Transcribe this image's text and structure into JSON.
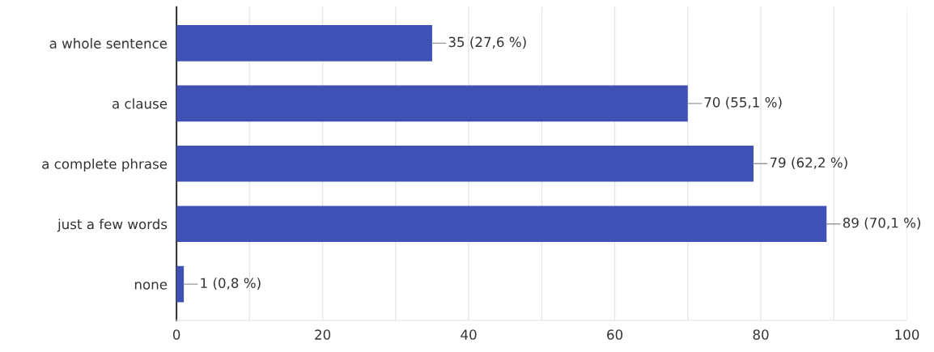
{
  "chart_data": {
    "type": "bar",
    "orientation": "horizontal",
    "categories": [
      "a whole sentence",
      "a clause",
      "a complete phrase",
      "just a few words",
      "none"
    ],
    "values": [
      35,
      70,
      79,
      89,
      1
    ],
    "value_labels": [
      "35 (27,6 %)",
      "70 (55,1 %)",
      "79 (62,2 %)",
      "89 (70,1 %)",
      "1 (0,8 %)"
    ],
    "color": "#3f51b5",
    "xlim": [
      0,
      100
    ],
    "xticks": [
      0,
      {
        "value": 10,
        "label": null
      },
      20,
      {
        "value": 30,
        "label": null
      },
      40,
      {
        "value": 50,
        "label": null
      },
      60,
      {
        "value": 70,
        "label": null
      },
      80,
      {
        "value": 90,
        "label": null
      },
      100
    ],
    "grid": "x"
  }
}
